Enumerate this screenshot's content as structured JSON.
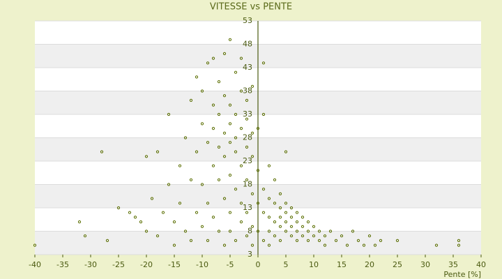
{
  "chart_data": {
    "type": "scatter",
    "title": "VITESSE vs PENTE",
    "x_label": "Pente [%]",
    "x": [
      -40,
      -32,
      -31,
      -28,
      -27,
      -25,
      -23,
      -22,
      -21,
      -20,
      -20,
      -19,
      -18,
      -18,
      -17,
      -16,
      -16,
      -15,
      -15,
      -14,
      -14,
      -13,
      -13,
      -12,
      -12,
      -12,
      -11,
      -11,
      -11,
      -10,
      -10,
      -10,
      -10,
      -9,
      -9,
      -9,
      -9,
      -8,
      -8,
      -8,
      -8,
      -8,
      -7,
      -7,
      -7,
      -7,
      -7,
      -6,
      -6,
      -6,
      -6,
      -6,
      -6,
      -5,
      -5,
      -5,
      -5,
      -5,
      -5,
      -5,
      -4,
      -4,
      -4,
      -4,
      -4,
      -4,
      -3,
      -3,
      -3,
      -3,
      -3,
      -3,
      -2,
      -2,
      -2,
      -2,
      -2,
      -2,
      -1,
      -1,
      -1,
      -1,
      -1,
      -1,
      0,
      0,
      0,
      0,
      1,
      1,
      1,
      1,
      1,
      2,
      2,
      2,
      2,
      2,
      3,
      3,
      3,
      3,
      4,
      4,
      4,
      4,
      4,
      5,
      5,
      5,
      5,
      5,
      6,
      6,
      6,
      6,
      7,
      7,
      7,
      7,
      8,
      8,
      8,
      9,
      9,
      9,
      10,
      10,
      11,
      11,
      12,
      12,
      13,
      14,
      15,
      16,
      17,
      18,
      19,
      20,
      21,
      22,
      25,
      32,
      36,
      36
    ],
    "values": [
      5,
      10,
      7,
      25,
      6,
      13,
      12,
      11,
      10,
      24,
      8,
      15,
      25,
      7,
      12,
      18,
      33,
      10,
      5,
      22,
      14,
      28,
      8,
      36,
      19,
      6,
      41,
      25,
      12,
      31,
      18,
      9,
      38,
      44,
      27,
      14,
      6,
      35,
      22,
      30,
      11,
      45,
      40,
      19,
      26,
      8,
      33,
      37,
      46,
      24,
      15,
      29,
      5,
      49,
      31,
      20,
      27,
      12,
      35,
      8,
      42,
      25,
      33,
      17,
      28,
      6,
      38,
      22,
      30,
      14,
      45,
      10,
      36,
      26,
      19,
      32,
      7,
      12,
      29,
      24,
      16,
      39,
      9,
      5,
      21,
      14,
      30,
      8,
      17,
      12,
      33,
      6,
      44,
      15,
      11,
      22,
      8,
      5,
      14,
      10,
      19,
      7,
      13,
      9,
      16,
      11,
      6,
      12,
      10,
      8,
      14,
      25,
      11,
      9,
      13,
      7,
      10,
      12,
      8,
      6,
      11,
      9,
      7,
      10,
      8,
      6,
      9,
      7,
      8,
      6,
      7,
      5,
      8,
      6,
      7,
      5,
      8,
      6,
      5,
      7,
      5,
      6,
      6,
      5,
      5,
      6
    ],
    "color": "#5a6e00",
    "xlim": [
      -40,
      40
    ],
    "xticks": [
      -40,
      -35,
      -30,
      -25,
      -20,
      -15,
      -10,
      -5,
      0,
      5,
      10,
      15,
      20,
      25,
      30,
      35,
      40
    ],
    "ylim": [
      3,
      53
    ],
    "yticks": [
      53,
      48,
      43,
      38,
      33,
      28,
      23,
      18,
      13,
      8,
      3
    ],
    "grid": true
  }
}
